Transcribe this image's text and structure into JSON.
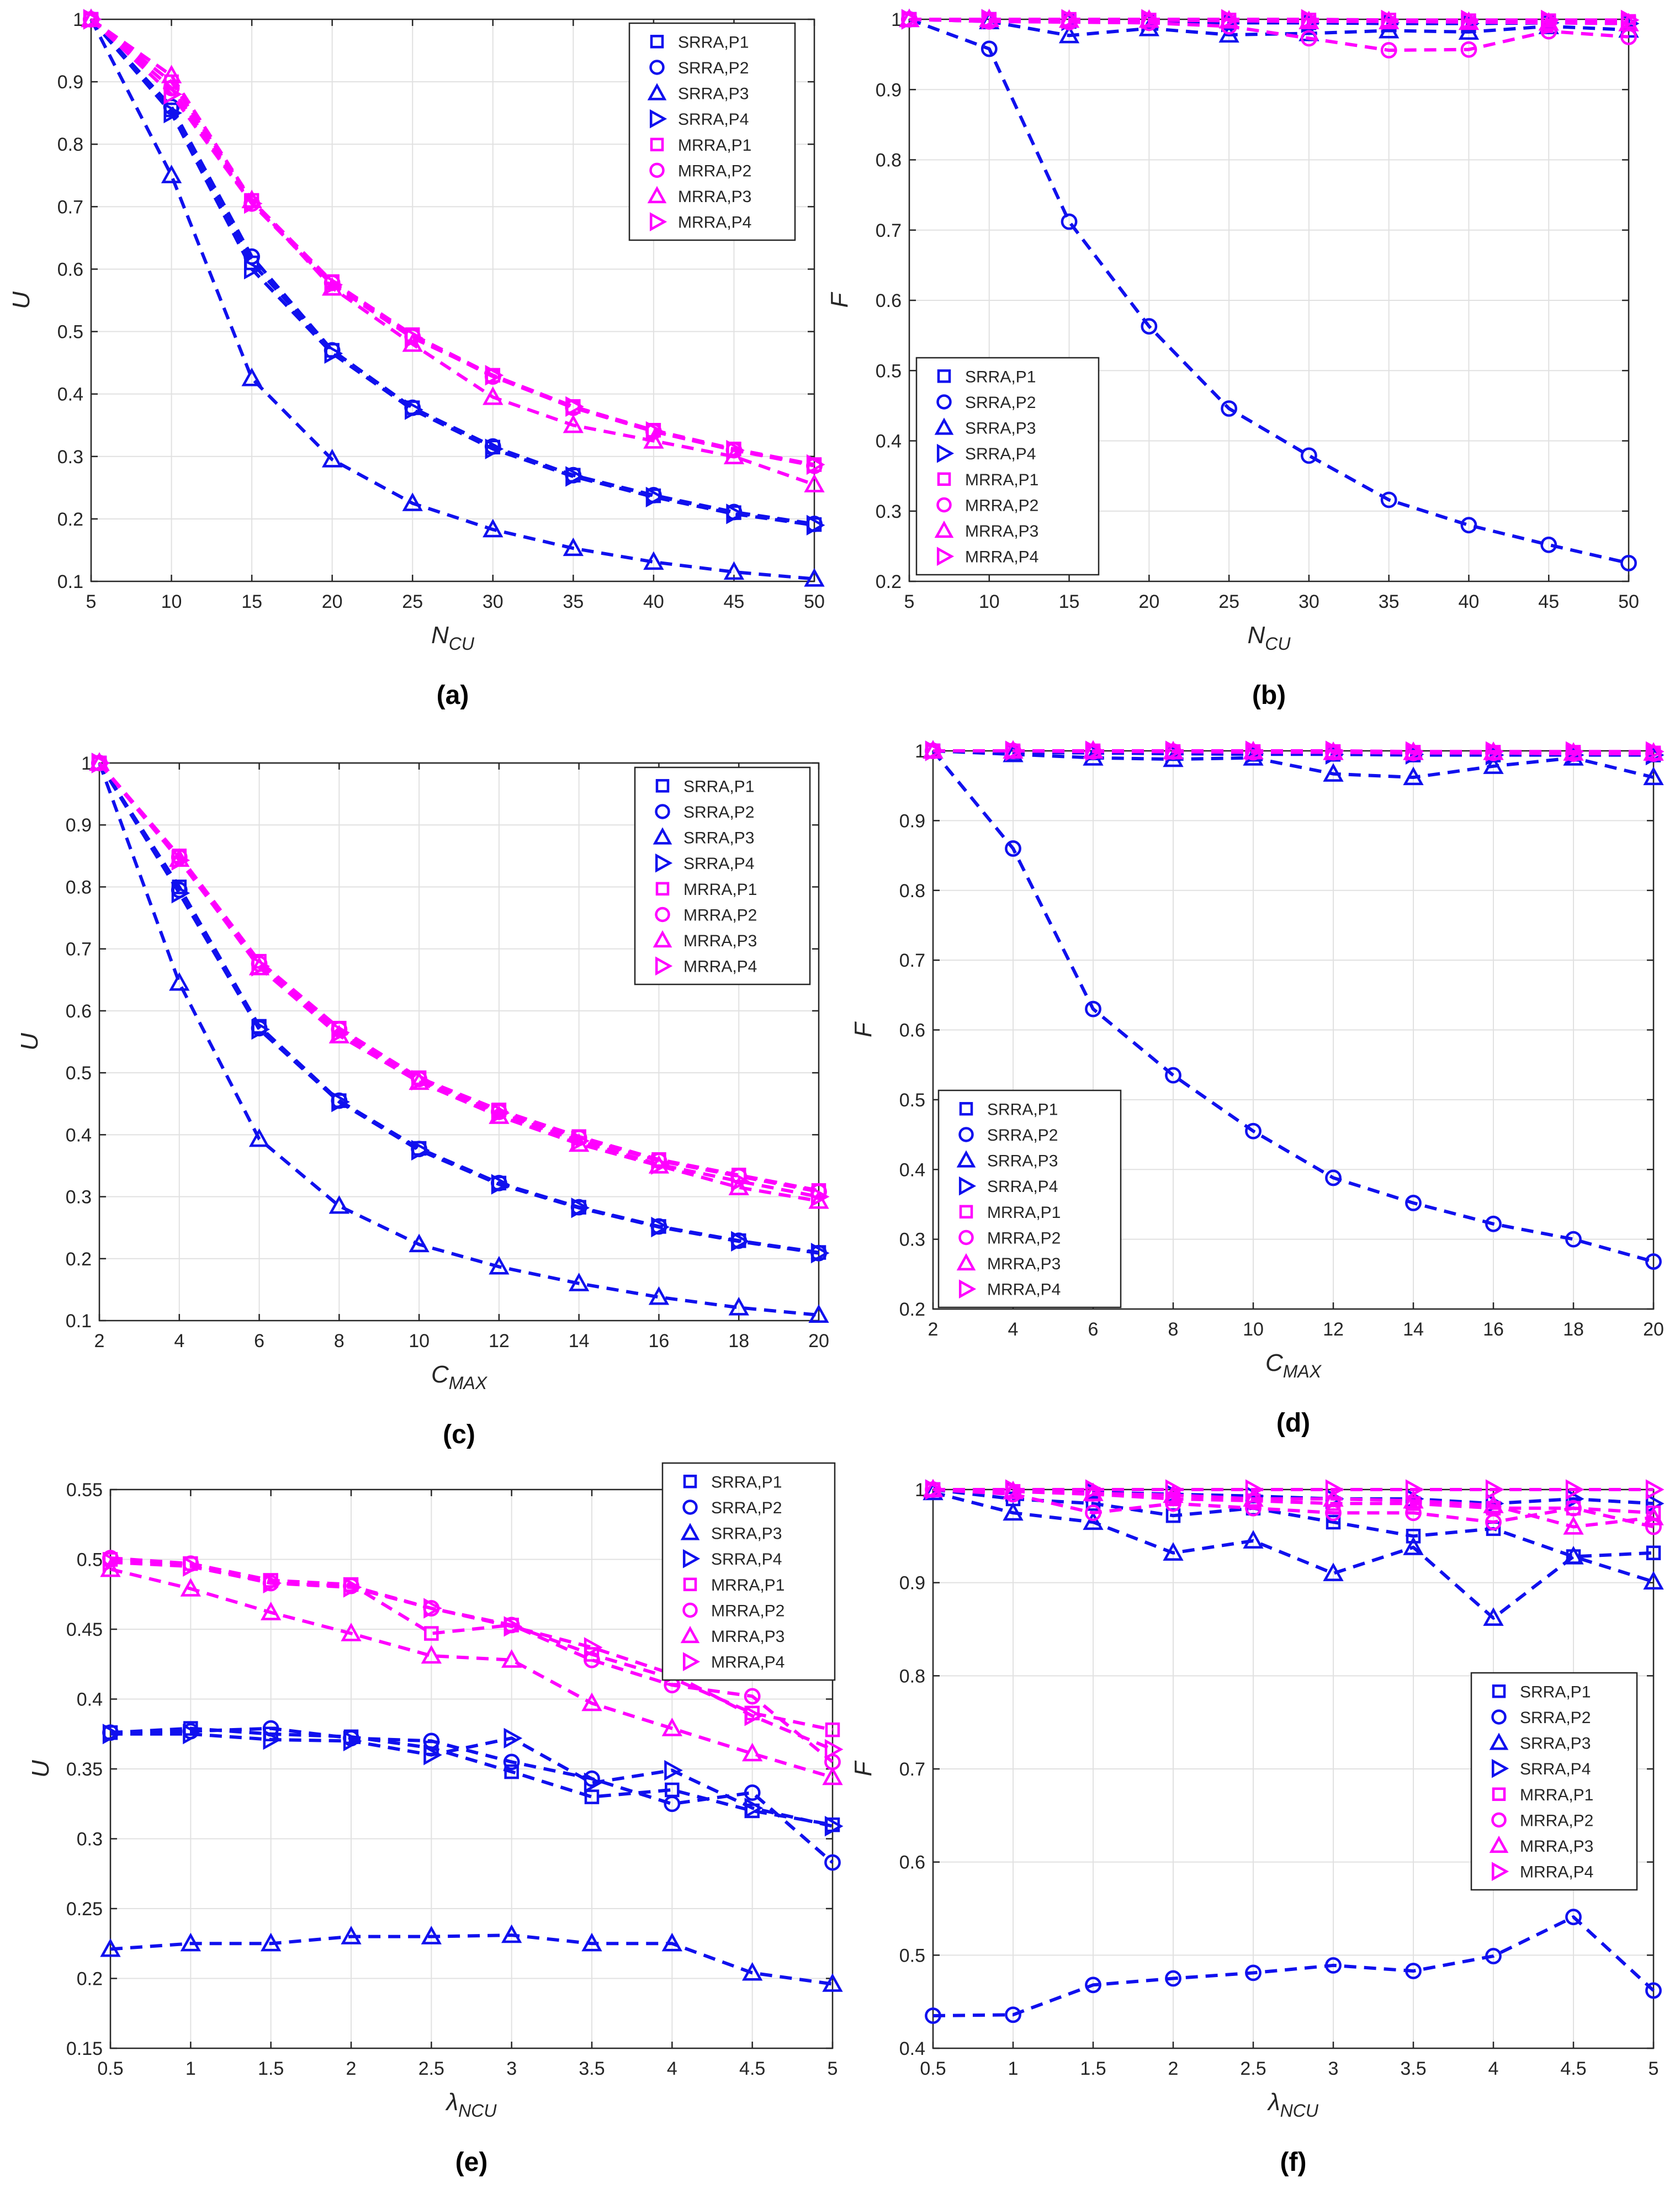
{
  "colors": {
    "srra": "#1010ee",
    "mrra": "#ff00ff",
    "grid": "#e1e1e1",
    "axis": "#262626"
  },
  "legend_labels": [
    "SRRA,P1",
    "SRRA,P2",
    "SRRA,P3",
    "SRRA,P4",
    "MRRA,P1",
    "MRRA,P2",
    "MRRA,P3",
    "MRRA,P4"
  ],
  "chart_data": [
    {
      "id": "a",
      "type": "line",
      "caption": "(a)",
      "legend_position": "top-right",
      "xlabel": "N",
      "xlabel_sub": "CU",
      "ylabel": "U",
      "xlim": [
        5,
        50
      ],
      "ylim": [
        0.1,
        1
      ],
      "xticks": [
        5,
        10,
        15,
        20,
        25,
        30,
        35,
        40,
        45,
        50
      ],
      "xtick_labels": [
        "5",
        "10",
        "15",
        "20",
        "25",
        "30",
        "35",
        "40",
        "45",
        "50"
      ],
      "yticks": [
        0.1,
        0.2,
        0.3,
        0.4,
        0.5,
        0.6,
        0.7,
        0.8,
        0.9,
        1
      ],
      "ytick_labels": [
        "0.1",
        "0.2",
        "0.3",
        "0.4",
        "0.5",
        "0.6",
        "0.7",
        "0.8",
        "0.9",
        "1"
      ],
      "x": [
        5,
        10,
        15,
        20,
        25,
        30,
        35,
        40,
        45,
        50
      ],
      "series": [
        {
          "name": "SRRA,P1",
          "values": [
            1,
            0.855,
            0.61,
            0.47,
            0.378,
            0.315,
            0.27,
            0.237,
            0.21,
            0.191
          ]
        },
        {
          "name": "SRRA,P2",
          "values": [
            1,
            0.86,
            0.62,
            0.47,
            0.378,
            0.316,
            0.27,
            0.238,
            0.211,
            0.192
          ]
        },
        {
          "name": "SRRA,P3",
          "values": [
            1,
            0.75,
            0.425,
            0.295,
            0.225,
            0.183,
            0.153,
            0.131,
            0.115,
            0.104
          ]
        },
        {
          "name": "SRRA,P4",
          "values": [
            1,
            0.85,
            0.6,
            0.465,
            0.375,
            0.312,
            0.268,
            0.235,
            0.208,
            0.19
          ]
        },
        {
          "name": "MRRA,P1",
          "values": [
            1,
            0.9,
            0.71,
            0.58,
            0.495,
            0.43,
            0.38,
            0.342,
            0.312,
            0.287
          ]
        },
        {
          "name": "MRRA,P2",
          "values": [
            1,
            0.89,
            0.705,
            0.578,
            0.492,
            0.428,
            0.378,
            0.34,
            0.31,
            0.285
          ]
        },
        {
          "name": "MRRA,P3",
          "values": [
            1,
            0.91,
            0.71,
            0.57,
            0.48,
            0.395,
            0.35,
            0.325,
            0.3,
            0.255
          ]
        },
        {
          "name": "MRRA,P4",
          "values": [
            1,
            0.88,
            0.705,
            0.575,
            0.49,
            0.43,
            0.38,
            0.34,
            0.31,
            0.287
          ]
        }
      ]
    },
    {
      "id": "b",
      "type": "line",
      "caption": "(b)",
      "legend_position": "bottom-left",
      "xlabel": "N",
      "xlabel_sub": "CU",
      "ylabel": "F",
      "xlim": [
        5,
        50
      ],
      "ylim": [
        0.2,
        1
      ],
      "xticks": [
        5,
        10,
        15,
        20,
        25,
        30,
        35,
        40,
        45,
        50
      ],
      "xtick_labels": [
        "5",
        "10",
        "15",
        "20",
        "25",
        "30",
        "35",
        "40",
        "45",
        "50"
      ],
      "yticks": [
        0.2,
        0.3,
        0.4,
        0.5,
        0.6,
        0.7,
        0.8,
        0.9,
        1
      ],
      "ytick_labels": [
        "0.2",
        "0.3",
        "0.4",
        "0.5",
        "0.6",
        "0.7",
        "0.8",
        "0.9",
        "1"
      ],
      "x": [
        5,
        10,
        15,
        20,
        25,
        30,
        35,
        40,
        45,
        50
      ],
      "series": [
        {
          "name": "SRRA,P1",
          "values": [
            1,
            1,
            0.997,
            0.996,
            0.995,
            0.995,
            0.994,
            0.994,
            0.995,
            0.995
          ]
        },
        {
          "name": "SRRA,P2",
          "values": [
            1,
            0.958,
            0.712,
            0.563,
            0.446,
            0.379,
            0.316,
            0.28,
            0.252,
            0.226
          ]
        },
        {
          "name": "SRRA,P3",
          "values": [
            1,
            0.997,
            0.977,
            0.987,
            0.978,
            0.98,
            0.984,
            0.982,
            0.99,
            0.985
          ]
        },
        {
          "name": "SRRA,P4",
          "values": [
            1,
            1,
            0.998,
            0.997,
            0.996,
            0.995,
            0.995,
            0.994,
            0.995,
            0.994
          ]
        },
        {
          "name": "MRRA,P1",
          "values": [
            1,
            1,
            1,
            0.999,
            0.999,
            0.999,
            0.999,
            0.998,
            0.998,
            0.997
          ]
        },
        {
          "name": "MRRA,P2",
          "values": [
            1,
            0.997,
            0.996,
            0.995,
            0.99,
            0.973,
            0.956,
            0.957,
            0.983,
            0.975
          ]
        },
        {
          "name": "MRRA,P3",
          "values": [
            1,
            1,
            0.999,
            0.999,
            0.998,
            0.997,
            0.997,
            0.996,
            0.995,
            0.994
          ]
        },
        {
          "name": "MRRA,P4",
          "values": [
            1,
            1,
            1,
            1,
            1,
            1,
            0.999,
            0.999,
            0.999,
            0.999
          ]
        }
      ]
    },
    {
      "id": "c",
      "type": "line",
      "caption": "(c)",
      "legend_position": "top-right",
      "xlabel": "C",
      "xlabel_sub": "MAX",
      "ylabel": "U",
      "xlim": [
        2,
        20
      ],
      "ylim": [
        0.1,
        1
      ],
      "xticks": [
        2,
        4,
        6,
        8,
        10,
        12,
        14,
        16,
        18,
        20
      ],
      "xtick_labels": [
        "2",
        "4",
        "6",
        "8",
        "10",
        "12",
        "14",
        "16",
        "18",
        "20"
      ],
      "yticks": [
        0.1,
        0.2,
        0.3,
        0.4,
        0.5,
        0.6,
        0.7,
        0.8,
        0.9,
        1
      ],
      "ytick_labels": [
        "0.1",
        "0.2",
        "0.3",
        "0.4",
        "0.5",
        "0.6",
        "0.7",
        "0.8",
        "0.9",
        "1"
      ],
      "x": [
        2,
        4,
        6,
        8,
        10,
        12,
        14,
        16,
        18,
        20
      ],
      "series": [
        {
          "name": "SRRA,P1",
          "values": [
            1,
            0.8,
            0.575,
            0.455,
            0.378,
            0.322,
            0.283,
            0.252,
            0.229,
            0.21
          ]
        },
        {
          "name": "SRRA,P2",
          "values": [
            1,
            0.795,
            0.572,
            0.455,
            0.377,
            0.322,
            0.283,
            0.252,
            0.229,
            0.209
          ]
        },
        {
          "name": "SRRA,P3",
          "values": [
            1,
            0.645,
            0.393,
            0.285,
            0.223,
            0.187,
            0.16,
            0.138,
            0.121,
            0.109
          ]
        },
        {
          "name": "SRRA,P4",
          "values": [
            1,
            0.79,
            0.57,
            0.453,
            0.375,
            0.32,
            0.282,
            0.251,
            0.228,
            0.209
          ]
        },
        {
          "name": "MRRA,P1",
          "values": [
            1,
            0.85,
            0.68,
            0.572,
            0.492,
            0.44,
            0.397,
            0.36,
            0.335,
            0.31
          ]
        },
        {
          "name": "MRRA,P2",
          "values": [
            1,
            0.848,
            0.676,
            0.57,
            0.49,
            0.437,
            0.395,
            0.358,
            0.333,
            0.308
          ]
        },
        {
          "name": "MRRA,P3",
          "values": [
            1,
            0.845,
            0.67,
            0.56,
            0.485,
            0.43,
            0.385,
            0.35,
            0.315,
            0.293
          ]
        },
        {
          "name": "MRRA,P4",
          "values": [
            1,
            0.843,
            0.672,
            0.565,
            0.488,
            0.435,
            0.39,
            0.352,
            0.325,
            0.3
          ]
        }
      ]
    },
    {
      "id": "d",
      "type": "line",
      "caption": "(d)",
      "legend_position": "bottom-left",
      "xlabel": "C",
      "xlabel_sub": "MAX",
      "ylabel": "F",
      "xlim": [
        2,
        20
      ],
      "ylim": [
        0.2,
        1
      ],
      "xticks": [
        2,
        4,
        6,
        8,
        10,
        12,
        14,
        16,
        18,
        20
      ],
      "xtick_labels": [
        "2",
        "4",
        "6",
        "8",
        "10",
        "12",
        "14",
        "16",
        "18",
        "20"
      ],
      "yticks": [
        0.2,
        0.3,
        0.4,
        0.5,
        0.6,
        0.7,
        0.8,
        0.9,
        1
      ],
      "ytick_labels": [
        "0.2",
        "0.3",
        "0.4",
        "0.5",
        "0.6",
        "0.7",
        "0.8",
        "0.9",
        "1"
      ],
      "x": [
        2,
        4,
        6,
        8,
        10,
        12,
        14,
        16,
        18,
        20
      ],
      "series": [
        {
          "name": "SRRA,P1",
          "values": [
            1,
            0.998,
            0.997,
            0.996,
            0.995,
            0.995,
            0.994,
            0.994,
            0.995,
            0.994
          ]
        },
        {
          "name": "SRRA,P2",
          "values": [
            1,
            0.86,
            0.63,
            0.535,
            0.455,
            0.388,
            0.352,
            0.322,
            0.3,
            0.268
          ]
        },
        {
          "name": "SRRA,P3",
          "values": [
            1,
            0.995,
            0.99,
            0.988,
            0.99,
            0.967,
            0.962,
            0.978,
            0.99,
            0.962
          ]
        },
        {
          "name": "SRRA,P4",
          "values": [
            1,
            0.999,
            0.998,
            0.997,
            0.996,
            0.995,
            0.995,
            0.994,
            0.994,
            0.994
          ]
        },
        {
          "name": "MRRA,P1",
          "values": [
            1,
            1,
            1,
            0.999,
            0.999,
            0.999,
            0.998,
            0.998,
            0.998,
            0.997
          ]
        },
        {
          "name": "MRRA,P2",
          "values": [
            1,
            1,
            0.999,
            0.999,
            0.998,
            0.998,
            0.997,
            0.997,
            0.996,
            0.996
          ]
        },
        {
          "name": "MRRA,P3",
          "values": [
            1,
            1,
            1,
            0.999,
            0.999,
            0.998,
            0.998,
            0.998,
            0.997,
            0.997
          ]
        },
        {
          "name": "MRRA,P4",
          "values": [
            1,
            1,
            1,
            1,
            1,
            1,
            0.999,
            0.999,
            0.999,
            0.999
          ]
        }
      ]
    },
    {
      "id": "e",
      "type": "line",
      "caption": "(e)",
      "legend_position": "top-right",
      "xlabel": "λ",
      "xlabel_sub": "NCU",
      "ylabel": "U",
      "xlim": [
        0.5,
        5
      ],
      "ylim": [
        0.15,
        0.55
      ],
      "xticks": [
        0.5,
        1,
        1.5,
        2,
        2.5,
        3,
        3.5,
        4,
        4.5,
        5
      ],
      "xtick_labels": [
        "0.5",
        "1",
        "1.5",
        "2",
        "2.5",
        "3",
        "3.5",
        "4",
        "4.5",
        "5"
      ],
      "yticks": [
        0.15,
        0.2,
        0.25,
        0.3,
        0.35,
        0.4,
        0.45,
        0.5,
        0.55
      ],
      "ytick_labels": [
        "0.15",
        "0.2",
        "0.25",
        "0.3",
        "0.35",
        "0.4",
        "0.45",
        "0.5",
        "0.55"
      ],
      "x": [
        0.5,
        1,
        1.5,
        2,
        2.5,
        3,
        3.5,
        4,
        4.5,
        5
      ],
      "series": [
        {
          "name": "SRRA,P1",
          "values": [
            0.376,
            0.379,
            0.375,
            0.373,
            0.365,
            0.348,
            0.33,
            0.335,
            0.32,
            0.31
          ]
        },
        {
          "name": "SRRA,P2",
          "values": [
            0.376,
            0.377,
            0.379,
            0.372,
            0.37,
            0.355,
            0.343,
            0.325,
            0.333,
            0.283
          ]
        },
        {
          "name": "SRRA,P3",
          "values": [
            0.221,
            0.225,
            0.225,
            0.23,
            0.23,
            0.231,
            0.225,
            0.225,
            0.204,
            0.196
          ]
        },
        {
          "name": "SRRA,P4",
          "values": [
            0.375,
            0.375,
            0.371,
            0.37,
            0.36,
            0.372,
            0.34,
            0.349,
            0.322,
            0.309
          ]
        },
        {
          "name": "MRRA,P1",
          "values": [
            0.5,
            0.497,
            0.485,
            0.482,
            0.447,
            0.453,
            0.432,
            0.415,
            0.39,
            0.378
          ]
        },
        {
          "name": "MRRA,P2",
          "values": [
            0.501,
            0.497,
            0.483,
            0.481,
            0.465,
            0.453,
            0.428,
            0.41,
            0.402,
            0.355
          ]
        },
        {
          "name": "MRRA,P3",
          "values": [
            0.493,
            0.479,
            0.462,
            0.447,
            0.431,
            0.428,
            0.397,
            0.379,
            0.361,
            0.344
          ]
        },
        {
          "name": "MRRA,P4",
          "values": [
            0.498,
            0.495,
            0.483,
            0.48,
            0.465,
            0.452,
            0.437,
            0.418,
            0.388,
            0.364
          ]
        }
      ]
    },
    {
      "id": "f",
      "type": "line",
      "caption": "(f)",
      "legend_position": "right",
      "xlabel": "λ",
      "xlabel_sub": "NCU",
      "ylabel": "F",
      "xlim": [
        0.5,
        5
      ],
      "ylim": [
        0.4,
        1
      ],
      "xticks": [
        0.5,
        1,
        1.5,
        2,
        2.5,
        3,
        3.5,
        4,
        4.5,
        5
      ],
      "xtick_labels": [
        "0.5",
        "1",
        "1.5",
        "2",
        "2.5",
        "3",
        "3.5",
        "4",
        "4.5",
        "5"
      ],
      "yticks": [
        0.4,
        0.5,
        0.6,
        0.7,
        0.8,
        0.9,
        1
      ],
      "ytick_labels": [
        "0.4",
        "0.5",
        "0.6",
        "0.7",
        "0.8",
        "0.9",
        "1"
      ],
      "x": [
        0.5,
        1,
        1.5,
        2,
        2.5,
        3,
        3.5,
        4,
        4.5,
        5
      ],
      "series": [
        {
          "name": "SRRA,P1",
          "values": [
            1,
            0.99,
            0.985,
            0.972,
            0.98,
            0.965,
            0.95,
            0.958,
            0.928,
            0.932
          ]
        },
        {
          "name": "SRRA,P2",
          "values": [
            0.435,
            0.436,
            0.468,
            0.475,
            0.481,
            0.489,
            0.483,
            0.499,
            0.541,
            0.462
          ]
        },
        {
          "name": "SRRA,P3",
          "values": [
            0.997,
            0.975,
            0.965,
            0.932,
            0.945,
            0.91,
            0.938,
            0.862,
            0.928,
            0.901
          ]
        },
        {
          "name": "SRRA,P4",
          "values": [
            1,
            0.998,
            0.997,
            0.995,
            0.993,
            0.99,
            0.99,
            0.985,
            0.99,
            0.985
          ]
        },
        {
          "name": "MRRA,P1",
          "values": [
            1,
            0.998,
            0.995,
            0.99,
            0.988,
            0.985,
            0.985,
            0.98,
            0.98,
            0.975
          ]
        },
        {
          "name": "MRRA,P2",
          "values": [
            1,
            0.995,
            0.975,
            0.985,
            0.98,
            0.975,
            0.975,
            0.965,
            0.98,
            0.96
          ]
        },
        {
          "name": "MRRA,P3",
          "values": [
            1,
            0.998,
            0.996,
            0.994,
            0.99,
            0.99,
            0.988,
            0.983,
            0.96,
            0.97
          ]
        },
        {
          "name": "MRRA,P4",
          "values": [
            1,
            1,
            1,
            1,
            1,
            1,
            1,
            1,
            1,
            1
          ]
        }
      ]
    }
  ]
}
